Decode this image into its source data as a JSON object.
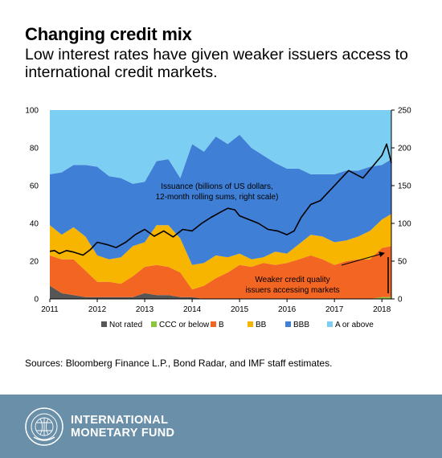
{
  "header": {
    "title": "Changing credit mix",
    "subtitle": "Low interest rates have given weaker issuers access to international credit markets."
  },
  "source": "Sources: Bloomberg Finance L.P., Bond Radar, and IMF staff estimates.",
  "footer": {
    "org_line1": "INTERNATIONAL",
    "org_line2": "MONETARY FUND",
    "logo_icon": "imf-seal-icon"
  },
  "colors": {
    "not_rated": "#565656",
    "ccc": "#8cc63f",
    "b": "#f26522",
    "bb": "#f7b500",
    "bbb": "#3f7fd6",
    "a": "#7ccff2",
    "issuance": "#000000"
  },
  "chart_data": {
    "type": "area",
    "title": "",
    "stacked": true,
    "x": [
      2011,
      2011.25,
      2011.5,
      2011.75,
      2012,
      2012.25,
      2012.5,
      2012.75,
      2013,
      2013.25,
      2013.5,
      2013.75,
      2014,
      2014.25,
      2014.5,
      2014.75,
      2015,
      2015.25,
      2015.5,
      2015.75,
      2016,
      2016.25,
      2016.5,
      2016.75,
      2017,
      2017.25,
      2017.5,
      2017.75,
      2018,
      2018.2
    ],
    "xticks": [
      2011,
      2012,
      2013,
      2014,
      2015,
      2016,
      2017,
      2018
    ],
    "xlim": [
      2011,
      2018.2
    ],
    "ylim_left": [
      0,
      100
    ],
    "yticks_left": [
      0,
      20,
      40,
      60,
      80,
      100
    ],
    "ylim_right": [
      0,
      250
    ],
    "yticks_right": [
      0,
      50,
      100,
      150,
      200,
      250
    ],
    "series": [
      {
        "name": "Not rated",
        "key": "not_rated",
        "values": [
          7,
          3,
          2,
          1,
          1,
          1,
          1,
          1,
          3,
          2,
          2,
          1,
          1,
          0,
          0,
          0,
          0,
          0,
          0,
          0,
          0,
          0,
          0,
          0,
          0,
          0,
          0,
          0,
          0,
          0
        ]
      },
      {
        "name": "CCC or below",
        "key": "ccc",
        "values": [
          0,
          0,
          0,
          0,
          0,
          0,
          0,
          0,
          0,
          0,
          0,
          0,
          0,
          0,
          0,
          0,
          0,
          0,
          0,
          0,
          0,
          0,
          0,
          0,
          0,
          0,
          0,
          0,
          1,
          1
        ]
      },
      {
        "name": "B",
        "key": "b",
        "values": [
          16,
          18,
          19,
          14,
          8,
          8,
          7,
          11,
          14,
          16,
          15,
          13,
          4,
          7,
          11,
          14,
          18,
          17,
          19,
          18,
          19,
          21,
          23,
          21,
          18,
          20,
          21,
          21,
          26,
          27
        ]
      },
      {
        "name": "BB",
        "key": "bb",
        "values": [
          16,
          13,
          17,
          18,
          14,
          12,
          14,
          16,
          13,
          21,
          22,
          18,
          13,
          12,
          12,
          8,
          6,
          4,
          3,
          7,
          5,
          8,
          11,
          12,
          12,
          11,
          12,
          15,
          15,
          17
        ]
      },
      {
        "name": "BBB",
        "key": "bbb",
        "values": [
          27,
          33,
          33,
          38,
          47,
          44,
          42,
          33,
          32,
          34,
          35,
          32,
          64,
          59,
          63,
          60,
          63,
          59,
          54,
          47,
          45,
          40,
          32,
          33,
          36,
          37,
          35,
          34,
          29,
          29
        ]
      },
      {
        "name": "A or above",
        "key": "a",
        "values": [
          34,
          33,
          29,
          29,
          30,
          35,
          36,
          39,
          38,
          27,
          26,
          36,
          18,
          22,
          14,
          18,
          13,
          20,
          24,
          28,
          31,
          31,
          34,
          34,
          34,
          32,
          32,
          30,
          29,
          26
        ]
      }
    ],
    "line": {
      "name": "Issuance",
      "axis": "right",
      "x": [
        2011,
        2011.1,
        2011.2,
        2011.35,
        2011.5,
        2011.7,
        2011.85,
        2012,
        2012.2,
        2012.4,
        2012.6,
        2012.8,
        2013,
        2013.2,
        2013.4,
        2013.6,
        2013.8,
        2014,
        2014.2,
        2014.4,
        2014.6,
        2014.75,
        2014.9,
        2015,
        2015.2,
        2015.4,
        2015.6,
        2015.8,
        2016,
        2016.15,
        2016.3,
        2016.5,
        2016.7,
        2016.85,
        2017,
        2017.15,
        2017.3,
        2017.45,
        2017.6,
        2017.8,
        2018,
        2018.1,
        2018.2
      ],
      "values": [
        63,
        64,
        60,
        64,
        62,
        58,
        65,
        75,
        72,
        68,
        75,
        85,
        92,
        83,
        90,
        82,
        92,
        90,
        100,
        108,
        115,
        120,
        118,
        110,
        105,
        100,
        92,
        90,
        85,
        90,
        108,
        125,
        130,
        140,
        150,
        160,
        170,
        165,
        160,
        175,
        190,
        205,
        180
      ]
    },
    "annotations": [
      {
        "text_lines": [
          "Issuance (billions of US dollars,",
          "12-month rolling sums, right scale)"
        ]
      },
      {
        "text_lines": [
          "Weaker credit quality",
          "issuers accessing markets"
        ]
      }
    ],
    "legend_position": "bottom"
  }
}
